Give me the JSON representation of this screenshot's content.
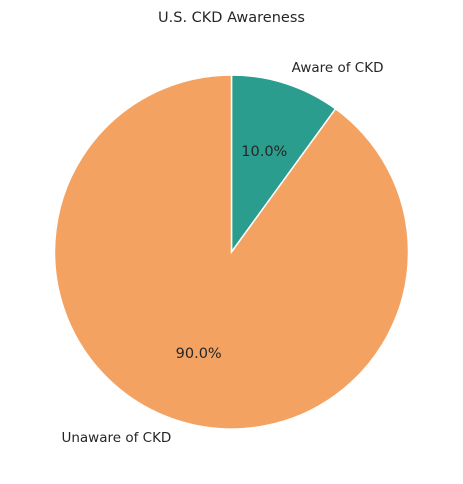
{
  "chart_data": {
    "type": "pie",
    "title": "U.S. CKD Awareness",
    "slices": [
      {
        "label": "Aware of CKD",
        "value": 10.0,
        "pct_label": "10.0%",
        "color": "#2a9d8f"
      },
      {
        "label": "Unaware of CKD",
        "value": 90.0,
        "pct_label": "90.0%",
        "color": "#f4a261"
      }
    ],
    "start_angle": "12 o'clock",
    "direction": "clockwise",
    "legend": "none"
  }
}
